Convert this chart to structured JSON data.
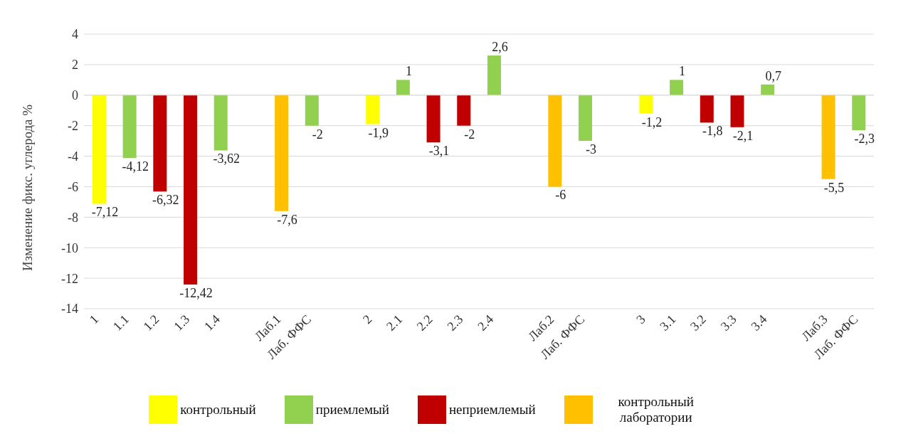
{
  "chart_data": {
    "type": "bar",
    "ylabel": "Изменение фикс. углерода %",
    "categories": [
      "1",
      "1.1",
      "1.2",
      "1.3",
      "1.4",
      null,
      "Лаб.1",
      "Лаб. ФФС",
      null,
      "2",
      "2.1",
      "2.2",
      "2.3",
      "2.4",
      null,
      "Лаб.2",
      "Лаб. ФФС",
      null,
      "3",
      "3.1",
      "3.2",
      "3.3",
      "3.4",
      null,
      "Лаб.3",
      "Лаб. ФФС"
    ],
    "stacked": true,
    "series": [
      {
        "name": "контрольный",
        "color": "#ffff00",
        "values": [
          -7.12,
          null,
          null,
          null,
          null,
          null,
          null,
          null,
          null,
          -1.9,
          null,
          null,
          null,
          null,
          null,
          null,
          null,
          null,
          -1.2,
          null,
          null,
          null,
          null,
          null,
          null,
          null
        ],
        "value_labels": [
          "-7,12",
          null,
          null,
          null,
          null,
          null,
          null,
          null,
          null,
          "-1,9",
          null,
          null,
          null,
          null,
          null,
          null,
          null,
          null,
          "-1,2",
          null,
          null,
          null,
          null,
          null,
          null,
          null
        ]
      },
      {
        "name": "приемлемый",
        "color": "#92d050",
        "values": [
          null,
          -4.12,
          null,
          null,
          -3.62,
          null,
          null,
          -2,
          null,
          null,
          1,
          null,
          null,
          2.6,
          null,
          null,
          -3,
          null,
          null,
          1,
          null,
          null,
          0.7,
          null,
          null,
          -2.3
        ],
        "value_labels": [
          null,
          "-4,12",
          null,
          null,
          "-3,62",
          null,
          null,
          "-2",
          null,
          null,
          "1",
          null,
          null,
          "2,6",
          null,
          null,
          "-3",
          null,
          null,
          "1",
          null,
          null,
          "0,7",
          null,
          null,
          "-2,3"
        ]
      },
      {
        "name": "неприемлемый",
        "color": "#c00000",
        "values": [
          null,
          null,
          -6.32,
          -12.42,
          null,
          null,
          null,
          null,
          null,
          null,
          null,
          -3.1,
          -2,
          null,
          null,
          null,
          null,
          null,
          null,
          null,
          -1.8,
          -2.1,
          null,
          null,
          null,
          null
        ],
        "value_labels": [
          null,
          null,
          "-6,32",
          "-12,42",
          null,
          null,
          null,
          null,
          null,
          null,
          null,
          "-3,1",
          "-2",
          null,
          null,
          null,
          null,
          null,
          null,
          null,
          "-1,8",
          "-2,1",
          null,
          null,
          null,
          null
        ]
      },
      {
        "name": "контрольный лаборатории",
        "color": "#ffc000",
        "values": [
          null,
          null,
          null,
          null,
          null,
          null,
          -7.6,
          null,
          null,
          null,
          null,
          null,
          null,
          null,
          null,
          -6,
          null,
          null,
          null,
          null,
          null,
          null,
          null,
          null,
          -5.5,
          null
        ],
        "value_labels": [
          null,
          null,
          null,
          null,
          null,
          null,
          "-7,6",
          null,
          null,
          null,
          null,
          null,
          null,
          null,
          null,
          "-6",
          null,
          null,
          null,
          null,
          null,
          null,
          null,
          null,
          "-5,5",
          null
        ]
      }
    ],
    "ylim": [
      -14,
      4
    ],
    "yticks": [
      -14,
      -12,
      -10,
      -8,
      -6,
      -4,
      -2,
      0,
      2,
      4
    ],
    "grid": "y",
    "legend": "bottom"
  }
}
